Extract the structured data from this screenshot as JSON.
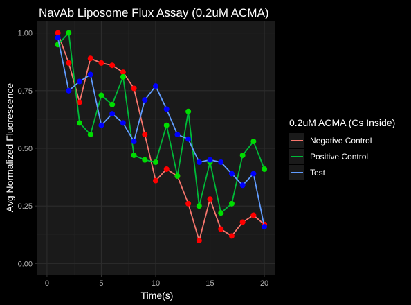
{
  "chart_data": {
    "type": "line",
    "title": "NavAb Liposome Flux Assay (0.2uM ACMA)",
    "xlabel": "Time(s)",
    "ylabel": "Avg Normalized Fluorescence",
    "xlim": [
      -0.95,
      20.95
    ],
    "ylim": [
      -0.05,
      1.05
    ],
    "x_ticks": [
      0,
      5,
      10,
      15,
      20
    ],
    "x_tick_labels": [
      "0",
      "5",
      "10",
      "15",
      "20"
    ],
    "y_ticks": [
      0,
      0.25,
      0.5,
      0.75,
      1.0
    ],
    "y_tick_labels": [
      "0.00",
      "0.25",
      "0.50",
      "0.75",
      "1.00"
    ],
    "grid": true,
    "legend_title": "0.2uM ACMA (Cs Inside)",
    "legend_position": "right",
    "x": [
      1,
      2,
      3,
      4,
      5,
      6,
      7,
      8,
      9,
      10,
      11,
      12,
      13,
      14,
      15,
      16,
      17,
      18,
      19,
      20
    ],
    "series": [
      {
        "name": "Negative Control",
        "line_color": "#F8766D",
        "marker_color": "#ff0000",
        "values": [
          1.0,
          0.87,
          0.7,
          0.89,
          0.87,
          0.86,
          0.83,
          0.76,
          0.56,
          0.36,
          0.41,
          0.38,
          0.26,
          0.1,
          0.28,
          0.15,
          0.12,
          0.18,
          0.21,
          0.17
        ]
      },
      {
        "name": "Positive Control",
        "line_color": "#00BA38",
        "marker_color": "#00dd00",
        "values": [
          0.95,
          1.0,
          0.61,
          0.56,
          0.73,
          0.69,
          0.81,
          0.47,
          0.45,
          0.44,
          0.6,
          0.38,
          0.66,
          0.25,
          0.44,
          0.22,
          0.26,
          0.47,
          0.53,
          0.41
        ]
      },
      {
        "name": "Test",
        "line_color": "#619CFF",
        "marker_color": "#0000ff",
        "values": [
          0.98,
          0.75,
          0.79,
          0.82,
          0.6,
          0.65,
          0.61,
          0.53,
          0.71,
          0.77,
          0.67,
          0.56,
          0.54,
          0.44,
          0.45,
          0.44,
          0.39,
          0.34,
          0.39,
          0.16
        ]
      }
    ]
  },
  "colors": {
    "background": "#000000",
    "panel": "#1a1a1a",
    "grid_major": "#2c2c2c",
    "grid_minor": "#232323",
    "tick_label": "#b3b3b3",
    "legend_key_bg": "#1a1a1a"
  }
}
